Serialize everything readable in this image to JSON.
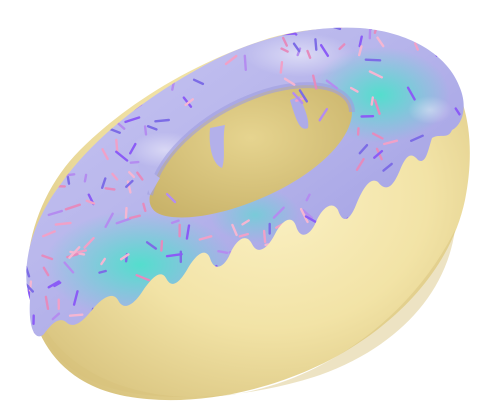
{
  "image": {
    "subject": "donut-with-icing-and-sprinkles",
    "colors": {
      "background": "#ffffff",
      "dough": "#f2e3a6",
      "dough_shadow": "#d9c47f",
      "icing_lavender": "#b9b7ec",
      "icing_mint": "#5fe0d0",
      "icing_highlight": "#e9e8ff",
      "icing_shadow": "#8f8bd6"
    },
    "sprinkle_colors": [
      "#8b5cf6",
      "#f0a1c8",
      "#b48cf0",
      "#f5b6d2",
      "#7c6ce6",
      "#e58bbd"
    ]
  }
}
